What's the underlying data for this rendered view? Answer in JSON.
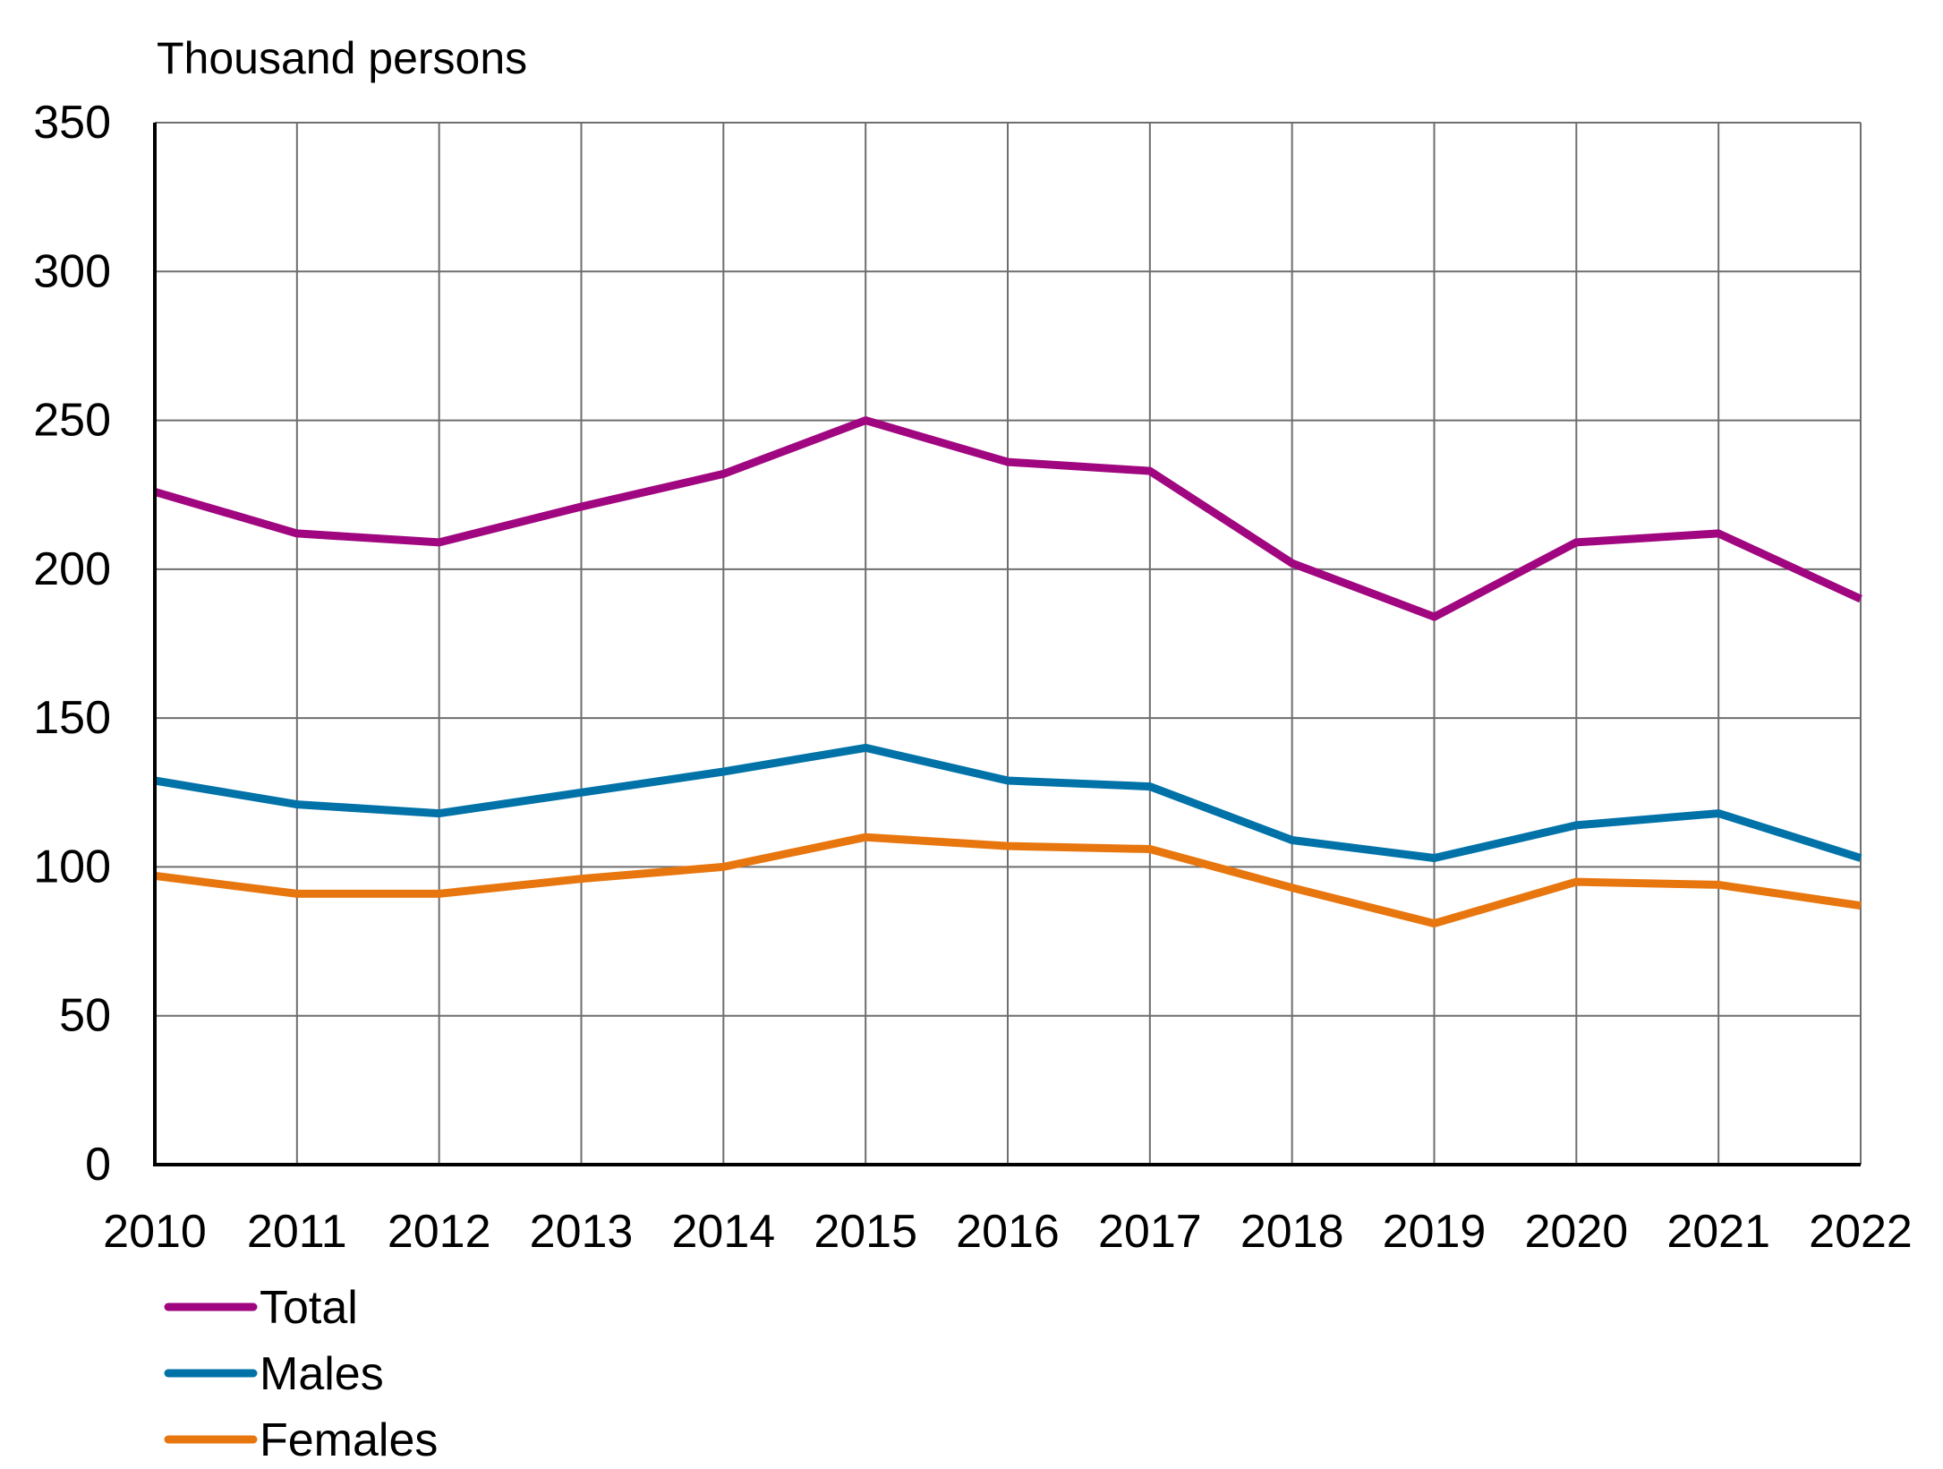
{
  "chart_data": {
    "type": "line",
    "title": "",
    "unit_label": "Thousand persons",
    "xlabel": "",
    "ylabel": "Thousand persons",
    "x": [
      "2010",
      "2011",
      "2012",
      "2013",
      "2014",
      "2015",
      "2016",
      "2017",
      "2018",
      "2019",
      "2020",
      "2021",
      "2022"
    ],
    "ylim": [
      0,
      350
    ],
    "yticks": [
      "0",
      "50",
      "100",
      "150",
      "200",
      "250",
      "300",
      "350"
    ],
    "grid": true,
    "legend_position": "bottom-left",
    "series": [
      {
        "name": "Total",
        "color": "#a0067f",
        "values": [
          226,
          212,
          209,
          221,
          232,
          250,
          236,
          233,
          202,
          184,
          209,
          212,
          190
        ]
      },
      {
        "name": "Males",
        "color": "#0072a8",
        "values": [
          129,
          121,
          118,
          125,
          132,
          140,
          129,
          127,
          109,
          103,
          114,
          118,
          103
        ]
      },
      {
        "name": "Females",
        "color": "#e8760e",
        "values": [
          97,
          91,
          91,
          96,
          100,
          110,
          107,
          106,
          93,
          81,
          95,
          94,
          87
        ]
      }
    ]
  }
}
